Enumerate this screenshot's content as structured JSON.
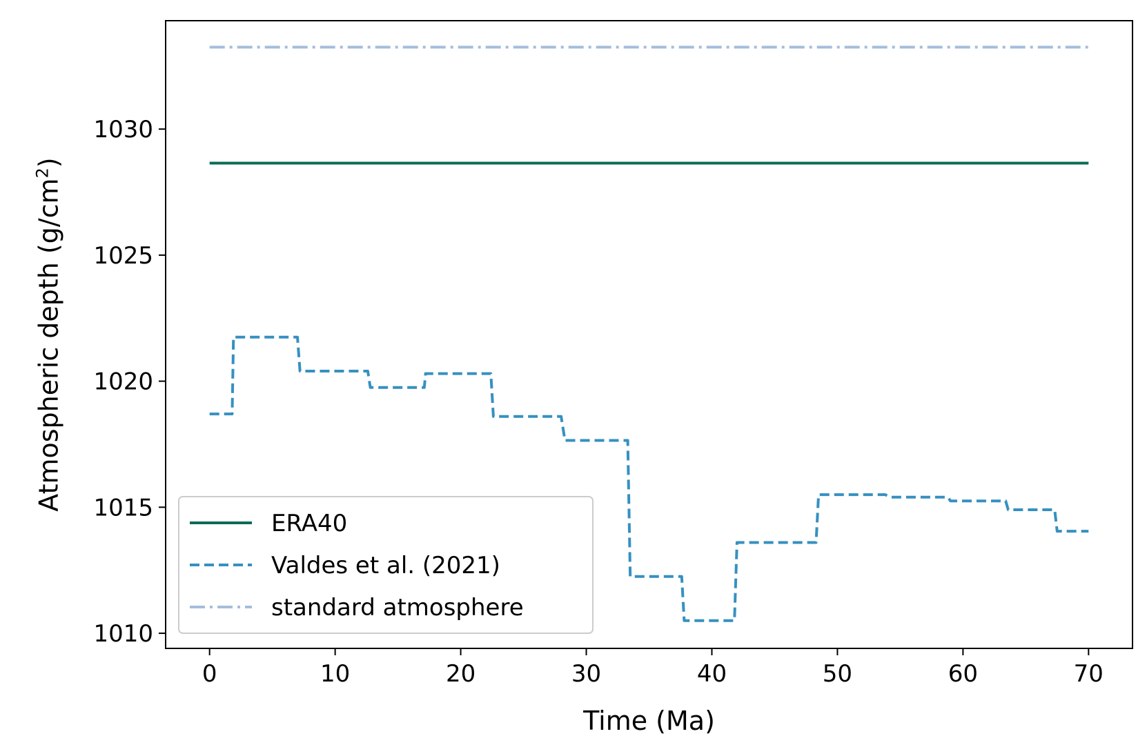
{
  "chart_data": {
    "type": "line",
    "title": "",
    "xlabel": "Time (Ma)",
    "ylabel": "Atmospheric depth (g/cm",
    "ylabel_superscript": "2",
    "ylabel_close": ")",
    "xlim": [
      -3.5,
      73.5
    ],
    "ylim": [
      1009.4,
      1034.3
    ],
    "xticks": [
      0,
      10,
      20,
      30,
      40,
      50,
      60,
      70
    ],
    "yticks": [
      1010,
      1015,
      1020,
      1025,
      1030
    ],
    "grid": false,
    "legend_position": "lower-left",
    "series": [
      {
        "name": "ERA40",
        "style": "solid",
        "color": "#0b6b55",
        "x": [
          0,
          70
        ],
        "y": [
          1028.65,
          1028.65
        ]
      },
      {
        "name": "Valdes et al. (2021)",
        "style": "dashed",
        "color": "#3690c0",
        "x": [
          0,
          1.8,
          1.9,
          7.0,
          7.2,
          12.6,
          12.8,
          17.1,
          17.2,
          22.4,
          22.6,
          28.0,
          28.3,
          33.3,
          33.5,
          37.6,
          37.8,
          41.8,
          42.0,
          48.3,
          48.5,
          53.8,
          54.2,
          58.8,
          59.0,
          63.4,
          63.6,
          67.3,
          67.5,
          70
        ],
        "y": [
          1018.7,
          1018.7,
          1021.75,
          1021.75,
          1020.4,
          1020.4,
          1019.75,
          1019.75,
          1020.3,
          1020.3,
          1018.6,
          1018.6,
          1017.65,
          1017.65,
          1012.25,
          1012.25,
          1010.5,
          1010.5,
          1013.6,
          1013.6,
          1015.5,
          1015.5,
          1015.4,
          1015.4,
          1015.25,
          1015.25,
          1014.9,
          1014.9,
          1014.05,
          1014.05
        ]
      },
      {
        "name": "standard atmosphere",
        "style": "dashdot",
        "color": "#a6bddb",
        "x": [
          0,
          70
        ],
        "y": [
          1033.25,
          1033.25
        ]
      }
    ]
  }
}
